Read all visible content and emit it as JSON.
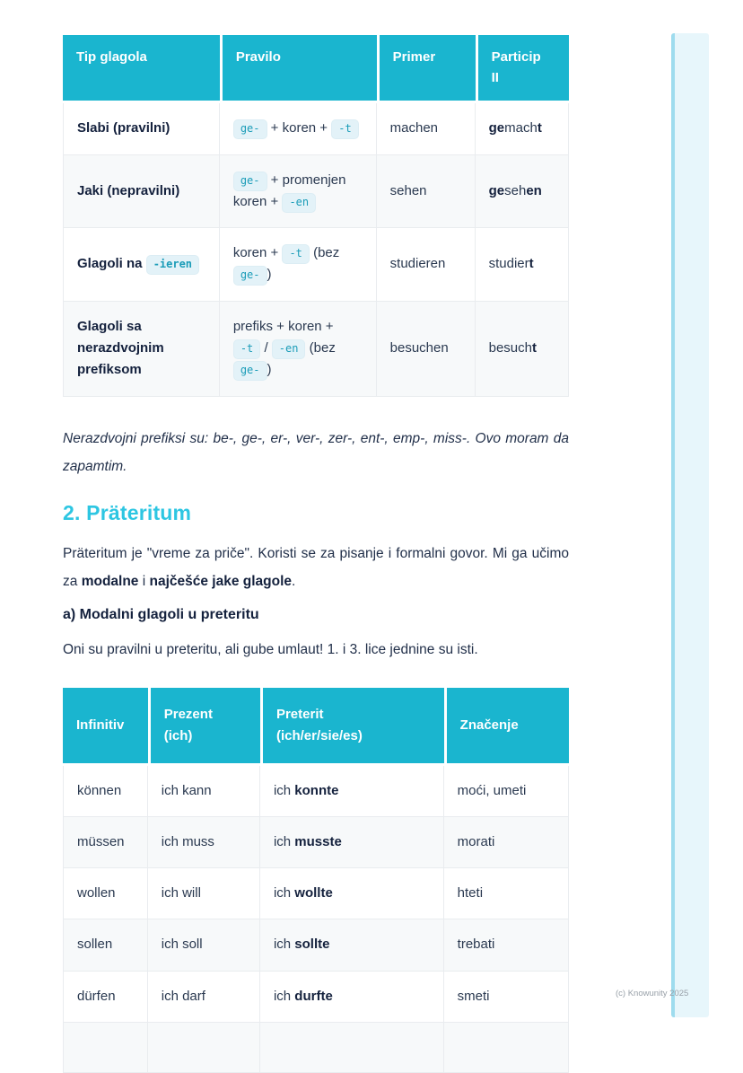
{
  "colors": {
    "table_header": "#1ab5cf",
    "heading_accent": "#2dc6e2",
    "chip_background": "#e3f2f8",
    "chip_text": "#1a9cb8"
  },
  "table1": {
    "headers": [
      "Tip glagola",
      "Pravilo",
      "Primer",
      "Particip\nII"
    ],
    "rows": [
      {
        "cells": [
          [
            {
              "t": "Slabi (pravilni)",
              "k": "b"
            }
          ],
          [
            {
              "t": "ge-",
              "k": "c"
            },
            {
              "t": " + koren + ",
              "k": "n"
            },
            {
              "t": "-t",
              "k": "c"
            }
          ],
          [
            {
              "t": "machen",
              "k": "n"
            }
          ],
          [
            {
              "t": "ge",
              "k": "b"
            },
            {
              "t": "mach",
              "k": "n"
            },
            {
              "t": "t",
              "k": "b"
            }
          ]
        ]
      },
      {
        "cells": [
          [
            {
              "t": "Jaki (nepravilni)",
              "k": "b"
            }
          ],
          [
            {
              "t": "ge-",
              "k": "c"
            },
            {
              "t": " + promenjen koren + ",
              "k": "n"
            },
            {
              "t": "-en",
              "k": "c"
            }
          ],
          [
            {
              "t": "sehen",
              "k": "n"
            }
          ],
          [
            {
              "t": "ge",
              "k": "b"
            },
            {
              "t": "seh",
              "k": "n"
            },
            {
              "t": "en",
              "k": "b"
            }
          ]
        ]
      },
      {
        "cells": [
          [
            {
              "t": "Glagoli na ",
              "k": "b"
            },
            {
              "t": "-ieren",
              "k": "c"
            }
          ],
          [
            {
              "t": "koren + ",
              "k": "n"
            },
            {
              "t": "-t",
              "k": "c"
            },
            {
              "t": " (bez ",
              "k": "n"
            },
            {
              "t": "ge-",
              "k": "c"
            },
            {
              "t": ")",
              "k": "n"
            }
          ],
          [
            {
              "t": "studieren",
              "k": "n"
            }
          ],
          [
            {
              "t": "studier",
              "k": "n"
            },
            {
              "t": "t",
              "k": "b"
            }
          ]
        ]
      },
      {
        "cells": [
          [
            {
              "t": "Glagoli sa nerazdvojnim prefiksom",
              "k": "b"
            }
          ],
          [
            {
              "t": "prefiks + koren + ",
              "k": "n"
            },
            {
              "t": "-t",
              "k": "c"
            },
            {
              "t": " / ",
              "k": "n"
            },
            {
              "t": "-en",
              "k": "c"
            },
            {
              "t": " (bez ",
              "k": "n"
            },
            {
              "t": "ge-",
              "k": "c"
            },
            {
              "t": ")",
              "k": "n"
            }
          ],
          [
            {
              "t": "besuchen",
              "k": "n"
            }
          ],
          [
            {
              "t": "besuch",
              "k": "n"
            },
            {
              "t": "t",
              "k": "b"
            }
          ]
        ]
      }
    ]
  },
  "note": "Nerazdvojni prefiksi su: be-, ge-, er-, ver-, zer-, ent-, emp-, miss-. Ovo moram da zapamtim.",
  "heading": "2. Präteritum",
  "para1": [
    {
      "t": "Präteritum je \"vreme za priče\". Koristi se za pisanje i formalni govor. Mi ga učimo za ",
      "k": "n"
    },
    {
      "t": "modalne",
      "k": "b"
    },
    {
      "t": " i ",
      "k": "n"
    },
    {
      "t": "najčešće jake glagole",
      "k": "b"
    },
    {
      "t": ".",
      "k": "n"
    }
  ],
  "subheading": "a) Modalni glagoli u preteritu",
  "para2": "Oni su pravilni u preteritu, ali gube umlaut! 1. i 3. lice jednine su isti.",
  "table2": {
    "headers": [
      "Infinitiv",
      "Prezent\n(ich)",
      "Preterit\n(ich/er/sie/es)",
      "Značenje"
    ],
    "rows": [
      {
        "cells": [
          [
            {
              "t": "können",
              "k": "n"
            }
          ],
          [
            {
              "t": "ich kann",
              "k": "n"
            }
          ],
          [
            {
              "t": "ich ",
              "k": "n"
            },
            {
              "t": "konnte",
              "k": "b"
            }
          ],
          [
            {
              "t": "moći, umeti",
              "k": "n"
            }
          ]
        ]
      },
      {
        "cells": [
          [
            {
              "t": "müssen",
              "k": "n"
            }
          ],
          [
            {
              "t": "ich muss",
              "k": "n"
            }
          ],
          [
            {
              "t": "ich ",
              "k": "n"
            },
            {
              "t": "musste",
              "k": "b"
            }
          ],
          [
            {
              "t": "morati",
              "k": "n"
            }
          ]
        ]
      },
      {
        "cells": [
          [
            {
              "t": "wollen",
              "k": "n"
            }
          ],
          [
            {
              "t": "ich will",
              "k": "n"
            }
          ],
          [
            {
              "t": "ich ",
              "k": "n"
            },
            {
              "t": "wollte",
              "k": "b"
            }
          ],
          [
            {
              "t": "hteti",
              "k": "n"
            }
          ]
        ]
      },
      {
        "cells": [
          [
            {
              "t": "sollen",
              "k": "n"
            }
          ],
          [
            {
              "t": "ich soll",
              "k": "n"
            }
          ],
          [
            {
              "t": "ich ",
              "k": "n"
            },
            {
              "t": "sollte",
              "k": "b"
            }
          ],
          [
            {
              "t": "trebati",
              "k": "n"
            }
          ]
        ]
      },
      {
        "cells": [
          [
            {
              "t": "dürfen",
              "k": "n"
            }
          ],
          [
            {
              "t": "ich darf",
              "k": "n"
            }
          ],
          [
            {
              "t": "ich ",
              "k": "n"
            },
            {
              "t": "durfte",
              "k": "b"
            }
          ],
          [
            {
              "t": "smeti",
              "k": "n"
            }
          ]
        ]
      }
    ]
  },
  "footer": {
    "copyright": "(c) Knowunity 2025"
  }
}
